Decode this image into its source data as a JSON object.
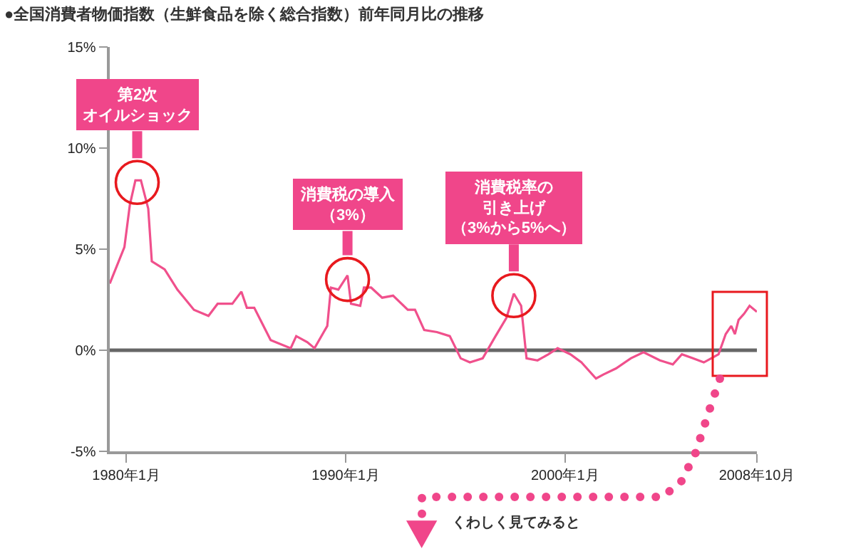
{
  "chart_data": {
    "type": "line",
    "title": "●全国消費者物価指数（生鮮食品を除く総合指数）前年同月比の推移",
    "x": [
      "1979-04",
      "1979-12",
      "1980-03",
      "1980-06",
      "1980-09",
      "1981-01",
      "1981-03",
      "1981-10",
      "1982-05",
      "1983-02",
      "1983-10",
      "1984-03",
      "1984-11",
      "1985-04",
      "1985-07",
      "1985-11",
      "1986-03",
      "1986-08",
      "1987-07",
      "1987-10",
      "1988-04",
      "1988-08",
      "1989-01",
      "1989-03",
      "1989-05",
      "1989-09",
      "1990-02",
      "1990-04",
      "1990-09",
      "1990-11",
      "1991-03",
      "1991-09",
      "1992-03",
      "1992-11",
      "1993-03",
      "1993-08",
      "1994-03",
      "1994-10",
      "1995-04",
      "1995-09",
      "1996-04",
      "1996-11",
      "1997-05",
      "1997-09",
      "1998-01",
      "1998-04",
      "1998-10",
      "1999-04",
      "1999-09",
      "2000-04",
      "2000-10",
      "2001-06",
      "2001-10",
      "2002-05",
      "2003-01",
      "2003-08",
      "2004-05",
      "2004-12",
      "2005-05",
      "2005-11",
      "2006-05",
      "2006-09",
      "2007-01",
      "2007-05",
      "2007-08",
      "2007-10",
      "2007-12",
      "2008-03",
      "2008-06",
      "2008-10"
    ],
    "series": [
      {
        "color": "#f0508c",
        "values": [
          3.3,
          5.1,
          7.2,
          8.4,
          8.4,
          7.0,
          4.4,
          4.0,
          3.0,
          2.0,
          1.7,
          2.3,
          2.3,
          2.9,
          2.1,
          2.1,
          1.4,
          0.5,
          0.1,
          0.7,
          0.4,
          0.1,
          0.9,
          1.2,
          3.1,
          3.0,
          3.7,
          2.3,
          2.2,
          3.1,
          3.1,
          2.6,
          2.7,
          2.0,
          2.0,
          1.0,
          0.9,
          0.7,
          -0.4,
          -0.6,
          -0.4,
          0.7,
          1.6,
          2.8,
          2.2,
          -0.4,
          -0.5,
          -0.2,
          0.1,
          -0.2,
          -0.6,
          -1.4,
          -1.2,
          -0.9,
          -0.4,
          -0.1,
          -0.5,
          -0.7,
          -0.2,
          -0.4,
          -0.6,
          -0.4,
          -0.2,
          0.8,
          1.2,
          0.8,
          1.5,
          1.8,
          2.2,
          1.9
        ]
      }
    ],
    "xlim": [
      "1979-04",
      "2008-10"
    ],
    "xticks": [
      {
        "value": "1980-01",
        "label": "1980年1月"
      },
      {
        "value": "1990-01",
        "label": "1990年1月"
      },
      {
        "value": "2000-01",
        "label": "2000年1月"
      },
      {
        "value": "2008-10",
        "label": "2008年10月"
      }
    ],
    "ylim": [
      -5,
      15
    ],
    "yticks": [
      {
        "value": -5,
        "label": "-5%"
      },
      {
        "value": 0,
        "label": "0%"
      },
      {
        "value": 5,
        "label": "5%"
      },
      {
        "value": 10,
        "label": "10%"
      },
      {
        "value": 15,
        "label": "15%"
      }
    ],
    "ref_lines": [
      {
        "axis": "y",
        "value": 0,
        "color": "#666666"
      }
    ],
    "annotations": [
      {
        "text": "第2次オイルショック",
        "x": "1980-07",
        "y": 8.3
      },
      {
        "text": "消費税の導入（3%）",
        "x": "1990-02",
        "y": 3.5
      },
      {
        "text": "消費税率の引き上げ（3%から5%へ）",
        "x": "1997-09",
        "y": 2.7
      },
      "くわしく見てみると"
    ],
    "grid": false,
    "marker": "none",
    "line_style": "solid"
  }
}
